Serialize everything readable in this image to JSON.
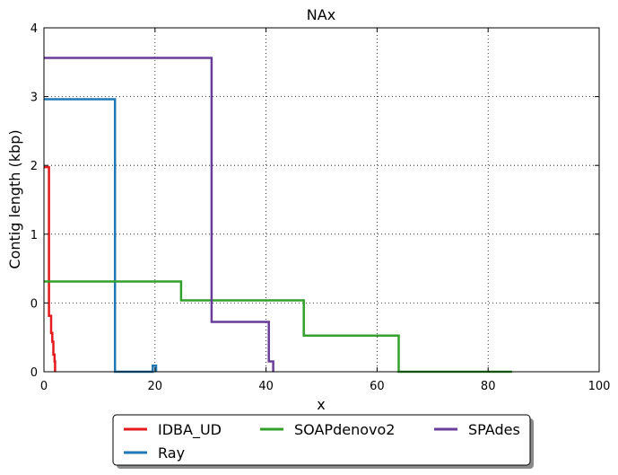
{
  "chart_data": {
    "type": "line",
    "title": "NAx",
    "xlabel": "x",
    "ylabel": "Contig length  (kbp)",
    "xlim": [
      0,
      100
    ],
    "ylim": [
      0,
      4
    ],
    "x_ticks": [
      "0",
      "20",
      "40",
      "60",
      "80",
      "100"
    ],
    "y_ticks": [
      "0",
      "0",
      "1",
      "2",
      "3",
      "4"
    ],
    "grid": true,
    "legend_position": "bottom-outside",
    "series": [
      {
        "name": "IDBA_UD",
        "color": "#e41a1c",
        "x": [
          0,
          0.9,
          0.9,
          1.3,
          1.3,
          1.5,
          1.5,
          1.7,
          1.7,
          1.9,
          1.9,
          2.0,
          2.0
        ],
        "y": [
          2.38,
          2.38,
          0.65,
          0.65,
          0.45,
          0.45,
          0.35,
          0.35,
          0.2,
          0.2,
          0.12,
          0.12,
          0
        ]
      },
      {
        "name": "Ray",
        "color": "#1f78b4",
        "x": [
          0,
          12.8,
          12.8,
          15.5,
          15.5,
          17.8,
          17.8,
          19.6,
          19.6,
          20.2,
          20.2
        ],
        "y": [
          3.17,
          3.17,
          -0.05,
          -0.05,
          -0.2,
          -0.2,
          -0.35,
          -0.35,
          0.07,
          0.07,
          0
        ]
      },
      {
        "name": "SOAPdenovo2",
        "color": "#33a02c",
        "x": [
          0,
          24.7,
          24.7,
          46.8,
          46.8,
          63.9,
          63.9,
          72.7,
          72.7,
          80.0,
          80.0,
          84.3,
          84.3
        ],
        "y": [
          1.05,
          1.05,
          0.83,
          0.83,
          0.42,
          0.42,
          -0.2,
          -0.2,
          -0.35,
          -0.35,
          -0.55,
          -0.55,
          0
        ]
      },
      {
        "name": "SPAdes",
        "color": "#6a3d9a",
        "x": [
          0,
          30.2,
          30.2,
          40.5,
          40.5,
          41.3,
          41.3
        ],
        "y": [
          3.65,
          3.65,
          0.58,
          0.58,
          0.12,
          0.12,
          0
        ]
      }
    ]
  }
}
